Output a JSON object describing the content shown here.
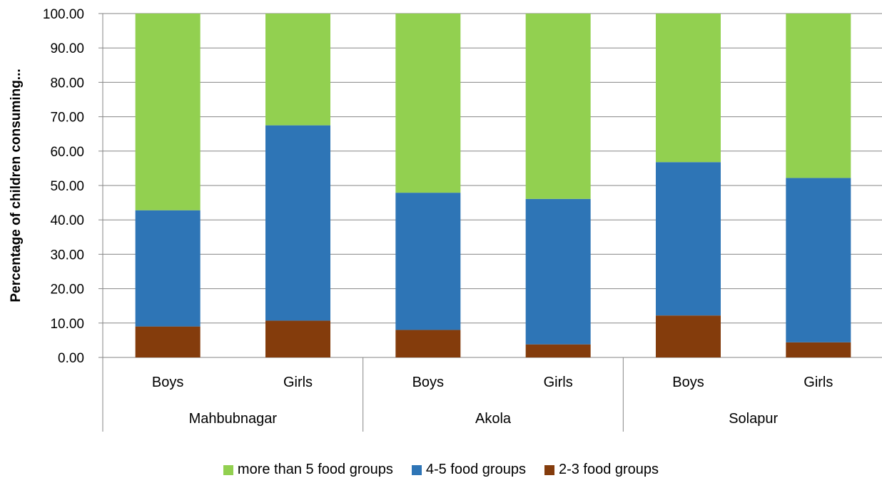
{
  "chart_data": {
    "type": "bar",
    "stacked": true,
    "title": "",
    "xlabel": "",
    "ylabel": "Percentage of children consuming...",
    "ylim": [
      0,
      100
    ],
    "y_ticks": [
      "0.00",
      "10.00",
      "20.00",
      "30.00",
      "40.00",
      "50.00",
      "60.00",
      "70.00",
      "80.00",
      "90.00",
      "100.00"
    ],
    "grid": true,
    "legend_position": "bottom",
    "groups": [
      "Mahbubnagar",
      "Akola",
      "Solapur"
    ],
    "categories": [
      "Boys",
      "Girls",
      "Boys",
      "Girls",
      "Boys",
      "Girls"
    ],
    "series": [
      {
        "name": "2-3 food groups",
        "color": "#843c0c",
        "values": [
          9.0,
          10.7,
          8.0,
          3.8,
          12.2,
          4.4
        ]
      },
      {
        "name": "4-5 food groups",
        "color": "#2e75b6",
        "values": [
          33.8,
          56.8,
          39.9,
          42.3,
          44.6,
          47.8
        ]
      },
      {
        "name": "more than 5 food groups",
        "color": "#92d050",
        "values": [
          57.2,
          32.5,
          52.1,
          53.9,
          43.2,
          47.8
        ]
      }
    ],
    "legend_order": [
      "more than 5 food groups",
      "4-5 food groups",
      "2-3 food groups"
    ]
  }
}
